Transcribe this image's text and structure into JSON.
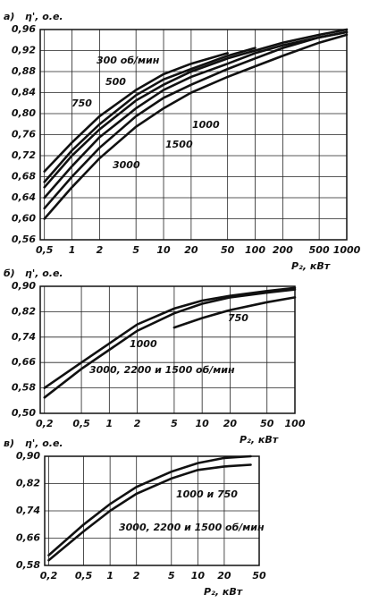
{
  "chart_data": [
    {
      "type": "line",
      "panel": "а)",
      "ylabel": "η', о.е.",
      "xlabel": "P₂, кВт",
      "log_x": true,
      "grid": true,
      "color": "#111111",
      "x": [
        0.5,
        1,
        2,
        5,
        10,
        20,
        50,
        100,
        200,
        500,
        1000
      ],
      "xlim": [
        0.45,
        1000
      ],
      "ylim": [
        0.56,
        0.96
      ],
      "xticks": [
        {
          "value": 0.5,
          "label": "0,5"
        },
        1,
        2,
        5,
        10,
        20,
        50,
        100,
        200,
        500,
        1000
      ],
      "yticks": [
        {
          "value": 0.56,
          "label": "0,56"
        },
        {
          "value": 0.6,
          "label": "0,60"
        },
        {
          "value": 0.64,
          "label": "0,64"
        },
        {
          "value": 0.68,
          "label": "0,68"
        },
        {
          "value": 0.72,
          "label": "0,72"
        },
        {
          "value": 0.76,
          "label": "0,76"
        },
        {
          "value": 0.8,
          "label": "0,80"
        },
        {
          "value": 0.84,
          "label": "0,84"
        },
        {
          "value": 0.88,
          "label": "0,88"
        },
        {
          "value": 0.92,
          "label": "0,92"
        },
        {
          "value": 0.96,
          "label": "0,96"
        }
      ],
      "series": [
        {
          "name": "300 об/мин",
          "values": [
            0.69,
            0.745,
            0.795,
            0.845,
            0.875,
            0.895,
            0.915,
            null,
            null,
            null,
            null
          ]
        },
        {
          "name": "500",
          "values": [
            0.67,
            0.73,
            0.78,
            0.835,
            0.865,
            0.885,
            0.91,
            0.925,
            null,
            null,
            null
          ]
        },
        {
          "name": "750",
          "values": [
            0.66,
            0.72,
            0.77,
            0.825,
            0.855,
            0.88,
            0.905,
            0.92,
            0.935,
            0.95,
            0.96
          ]
        },
        {
          "name": "1000",
          "values": [
            0.64,
            0.7,
            0.755,
            0.81,
            0.845,
            0.87,
            0.895,
            0.915,
            0.93,
            0.945,
            0.955
          ]
        },
        {
          "name": "1500",
          "values": [
            0.62,
            0.68,
            0.735,
            0.795,
            0.83,
            0.855,
            0.885,
            0.905,
            0.925,
            0.945,
            0.955
          ]
        },
        {
          "name": "3000",
          "values": [
            0.6,
            0.66,
            0.715,
            0.775,
            0.81,
            0.84,
            0.87,
            0.89,
            0.91,
            0.935,
            0.95
          ]
        }
      ]
    },
    {
      "type": "line",
      "panel": "б)",
      "ylabel": "η', о.е.",
      "xlabel": "P₂, кВт",
      "log_x": true,
      "grid": true,
      "color": "#111111",
      "x": [
        0.2,
        0.5,
        1,
        2,
        5,
        10,
        20,
        50,
        100
      ],
      "xlim": [
        0.18,
        100
      ],
      "ylim": [
        0.5,
        0.9
      ],
      "xticks": [
        {
          "value": 0.2,
          "label": "0,2"
        },
        {
          "value": 0.5,
          "label": "0,5"
        },
        1,
        2,
        5,
        10,
        20,
        50,
        100
      ],
      "yticks": [
        {
          "value": 0.5,
          "label": "0,50"
        },
        {
          "value": 0.58,
          "label": "0,58"
        },
        {
          "value": 0.66,
          "label": "0,66"
        },
        {
          "value": 0.74,
          "label": "0,74"
        },
        {
          "value": 0.82,
          "label": "0,82"
        },
        {
          "value": 0.9,
          "label": "0,90"
        }
      ],
      "series": [
        {
          "name": "3000, 2200 и 1500 об/мин",
          "values": [
            0.58,
            0.66,
            0.72,
            0.78,
            0.83,
            0.855,
            0.87,
            0.885,
            0.895
          ]
        },
        {
          "name": "1000",
          "values": [
            0.55,
            0.64,
            0.7,
            0.76,
            0.815,
            0.845,
            0.865,
            0.88,
            0.89
          ]
        },
        {
          "name": "750",
          "values": [
            null,
            null,
            null,
            null,
            0.77,
            0.8,
            0.825,
            0.85,
            0.865
          ]
        }
      ]
    },
    {
      "type": "line",
      "panel": "в)",
      "ylabel": "η', о.е.",
      "xlabel": "P₂, кВт",
      "log_x": true,
      "grid": true,
      "color": "#111111",
      "x": [
        0.2,
        0.5,
        1,
        2,
        5,
        10,
        20,
        40
      ],
      "xlim": [
        0.18,
        50
      ],
      "ylim": [
        0.58,
        0.9
      ],
      "xticks": [
        {
          "value": 0.2,
          "label": "0,2"
        },
        {
          "value": 0.5,
          "label": "0,5"
        },
        1,
        2,
        5,
        10,
        20,
        50
      ],
      "yticks": [
        {
          "value": 0.58,
          "label": "0,58"
        },
        {
          "value": 0.66,
          "label": "0,66"
        },
        {
          "value": 0.74,
          "label": "0,74"
        },
        {
          "value": 0.82,
          "label": "0,82"
        },
        {
          "value": 0.9,
          "label": "0,90"
        }
      ],
      "series": [
        {
          "name": "3000, 2200 и 1500 об/мин",
          "values": [
            0.61,
            0.7,
            0.76,
            0.81,
            0.855,
            0.88,
            0.895,
            0.9
          ]
        },
        {
          "name": "1000 и 750",
          "values": [
            0.595,
            0.68,
            0.74,
            0.79,
            0.835,
            0.86,
            0.87,
            0.875
          ]
        }
      ]
    }
  ]
}
